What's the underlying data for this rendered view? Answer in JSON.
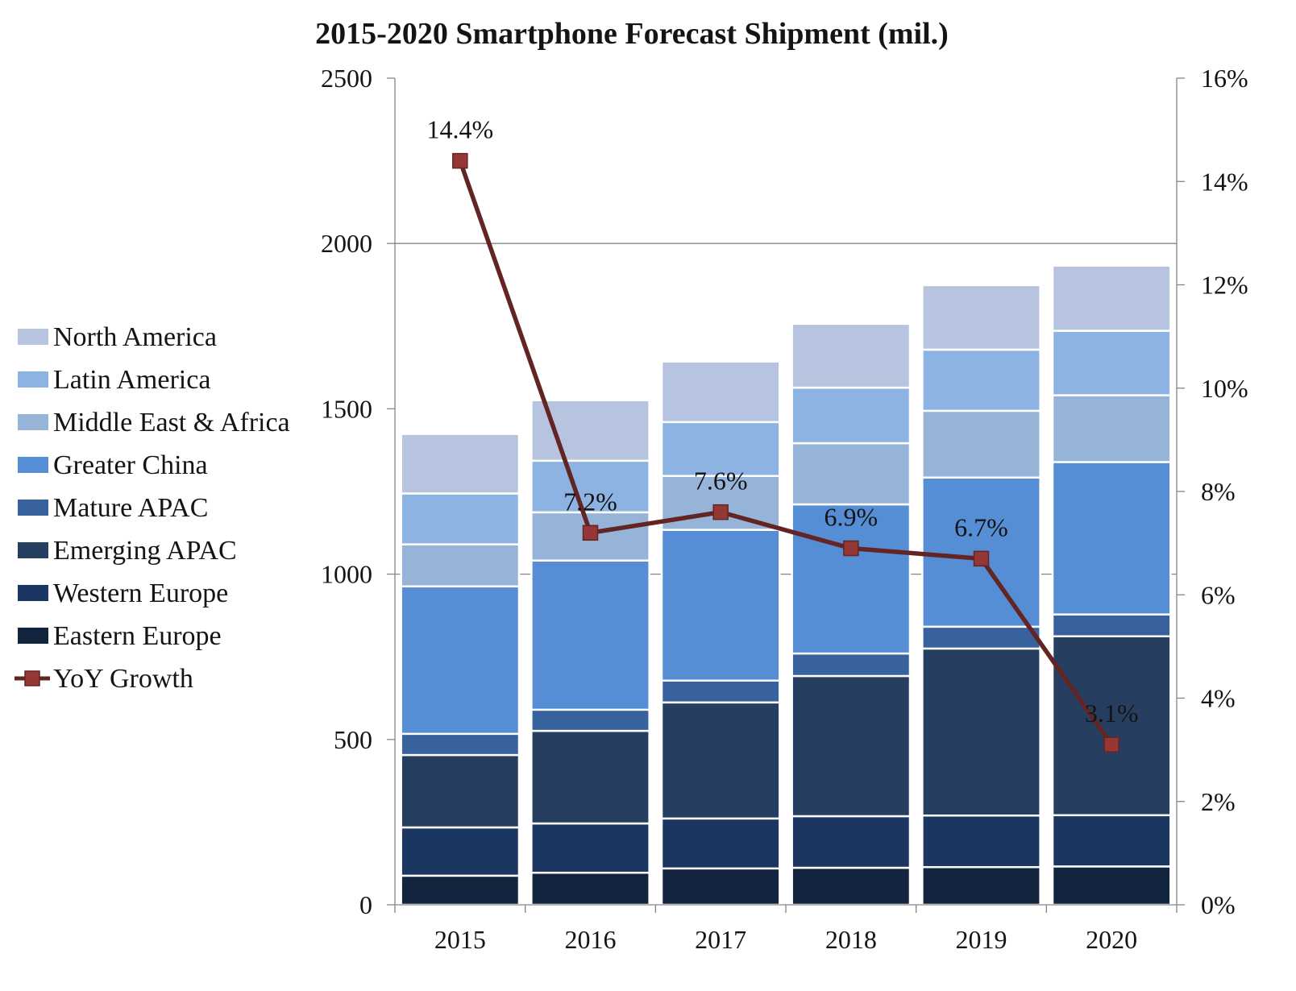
{
  "chart_data": {
    "type": "bar",
    "stacked": true,
    "title": "2015-2020 Smartphone Forecast Shipment (mil.)",
    "categories": [
      "2015",
      "2016",
      "2017",
      "2018",
      "2019",
      "2020"
    ],
    "series": [
      {
        "name": "Eastern Europe",
        "color": "#13243e",
        "values": [
          88,
          97,
          110,
          112,
          114,
          116
        ]
      },
      {
        "name": "Western Europe",
        "color": "#1b3660",
        "values": [
          146,
          149,
          151,
          156,
          156,
          155
        ]
      },
      {
        "name": "Emerging APAC",
        "color": "#263f61",
        "values": [
          219,
          280,
          351,
          424,
          505,
          541
        ]
      },
      {
        "name": "Mature APAC",
        "color": "#38629d",
        "values": [
          64,
          64,
          66,
          68,
          66,
          66
        ]
      },
      {
        "name": "Greater China",
        "color": "#558ed5",
        "values": [
          446,
          451,
          456,
          451,
          451,
          461
        ]
      },
      {
        "name": "Middle East & Africa",
        "color": "#96b3d8",
        "values": [
          127,
          146,
          163,
          185,
          202,
          202
        ]
      },
      {
        "name": "Latin America",
        "color": "#8db3e2",
        "values": [
          154,
          156,
          163,
          168,
          185,
          195
        ]
      },
      {
        "name": "North America",
        "color": "#b7c4df",
        "values": [
          180,
          183,
          183,
          193,
          195,
          197
        ]
      }
    ],
    "line_series": {
      "type": "line",
      "name": "YoY Growth",
      "axis": "right",
      "line_color": "#632523",
      "marker_color": "#953735",
      "values": [
        14.4,
        7.2,
        7.6,
        6.9,
        6.7,
        3.1
      ],
      "data_labels": [
        "14.4%",
        "7.2%",
        "7.6%",
        "6.9%",
        "6.7%",
        "3.1%"
      ]
    },
    "y_left": {
      "range": [
        0,
        2500
      ],
      "tick_labels": [
        "0",
        "500",
        "1000",
        "1500",
        "2000",
        "2500"
      ],
      "gridlines": [
        1000,
        2000
      ]
    },
    "y_right": {
      "range": [
        0,
        16
      ],
      "tick_labels": [
        "0%",
        "2%",
        "4%",
        "6%",
        "8%",
        "10%",
        "12%",
        "14%",
        "16%"
      ]
    },
    "grid": true,
    "legend_position": "left"
  }
}
